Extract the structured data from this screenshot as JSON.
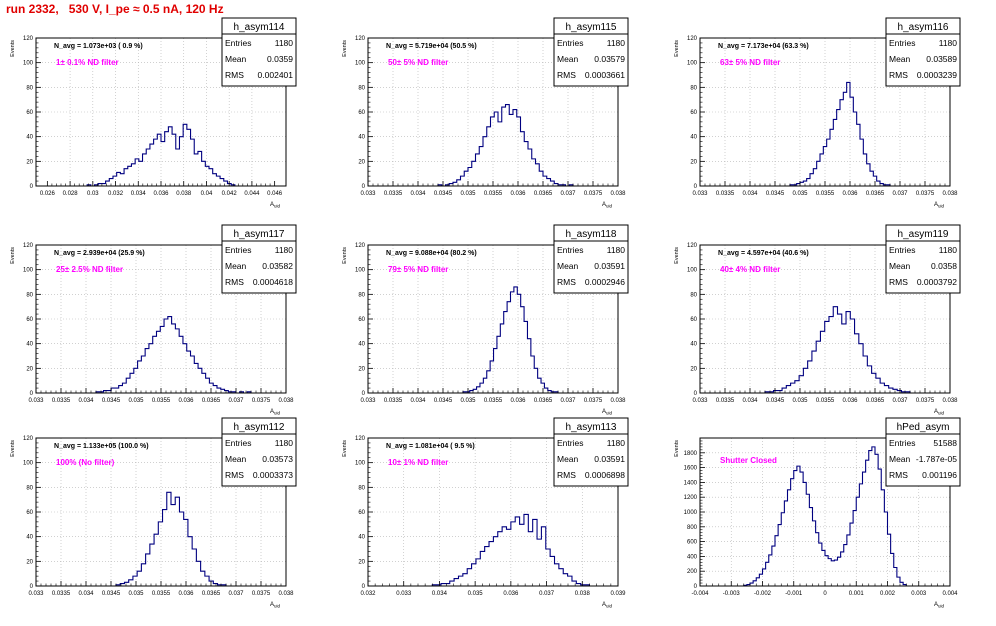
{
  "page_title": "run 2332,   530 V, I_pe ≈ 0.5 nA, 120 Hz",
  "colors": {
    "title": "#e00000",
    "histogram": "#000080",
    "annotation": "#ff00ff",
    "frame": "#000000",
    "grid": "#b4b4b4"
  },
  "chart_data": [
    {
      "type": "bar",
      "histogram_name": "h_asym114",
      "stats": {
        "entries_label": "Entries",
        "entries": "1180",
        "mean_label": "Mean",
        "mean": "0.0359",
        "rms_label": "RMS",
        "rms": "0.002401"
      },
      "n_avg_text": "N_avg = 1.073e+03 ( 0.9 %)",
      "filter_text": "1± 0.1% ND filter",
      "ylabel": "Events",
      "xlabel": "A_uid",
      "xlim": [
        0.025,
        0.047
      ],
      "ylim": [
        0,
        120
      ],
      "x_ticks": [
        "0.026",
        "0.028",
        "0.03",
        "0.032",
        "0.034",
        "0.036",
        "0.038",
        "0.04",
        "0.042",
        "0.044",
        "0.046"
      ],
      "x_tick_values": [
        0.026,
        0.028,
        0.03,
        0.032,
        0.034,
        0.036,
        0.038,
        0.04,
        0.042,
        0.044,
        0.046
      ],
      "y_ticks": [
        "0",
        "20",
        "40",
        "60",
        "80",
        "100",
        "120"
      ],
      "y_tick_values": [
        0,
        20,
        40,
        60,
        80,
        100,
        120
      ],
      "bin_edges_range": [
        0.0295,
        0.0425
      ],
      "values": [
        1,
        0,
        1,
        2,
        2,
        4,
        6,
        8,
        11,
        10,
        14,
        16,
        18,
        22,
        20,
        26,
        30,
        34,
        38,
        42,
        36,
        44,
        48,
        42,
        30,
        40,
        50,
        46,
        38,
        26,
        28,
        20,
        16,
        14,
        10,
        8,
        6,
        4,
        2,
        1
      ]
    },
    {
      "type": "bar",
      "histogram_name": "h_asym115",
      "stats": {
        "entries_label": "Entries",
        "entries": "1180",
        "mean_label": "Mean",
        "mean": "0.03579",
        "rms_label": "RMS",
        "rms": "0.0003661"
      },
      "n_avg_text": "N_avg = 5.719e+04 (50.5 %)",
      "filter_text": "50± 5% ND filter",
      "ylabel": "Events",
      "xlabel": "A_uid",
      "xlim": [
        0.033,
        0.038
      ],
      "ylim": [
        0,
        120
      ],
      "x_ticks": [
        "0.033",
        "0.0335",
        "0.034",
        "0.0345",
        "0.035",
        "0.0355",
        "0.036",
        "0.0365",
        "0.037",
        "0.0375",
        "0.038"
      ],
      "x_tick_values": [
        0.033,
        0.0335,
        0.034,
        0.0345,
        0.035,
        0.0355,
        0.036,
        0.0365,
        0.037,
        0.0375,
        0.038
      ],
      "y_ticks": [
        "0",
        "20",
        "40",
        "60",
        "80",
        "100",
        "120"
      ],
      "y_tick_values": [
        0,
        20,
        40,
        60,
        80,
        100,
        120
      ],
      "bin_edges_range": [
        0.0344,
        0.0371
      ],
      "values": [
        1,
        0,
        1,
        2,
        3,
        5,
        8,
        12,
        15,
        20,
        26,
        32,
        40,
        48,
        56,
        60,
        52,
        64,
        66,
        58,
        62,
        56,
        44,
        36,
        30,
        22,
        18,
        12,
        8,
        6,
        4,
        2,
        1,
        1,
        0,
        1
      ]
    },
    {
      "type": "bar",
      "histogram_name": "h_asym116",
      "stats": {
        "entries_label": "Entries",
        "entries": "1180",
        "mean_label": "Mean",
        "mean": "0.03589",
        "rms_label": "RMS",
        "rms": "0.0003239"
      },
      "n_avg_text": "N_avg = 7.173e+04 (63.3 %)",
      "filter_text": "63± 5% ND filter",
      "ylabel": "Events",
      "xlabel": "A_uid",
      "xlim": [
        0.033,
        0.038
      ],
      "ylim": [
        0,
        120
      ],
      "x_ticks": [
        "0.033",
        "0.0335",
        "0.034",
        "0.0345",
        "0.035",
        "0.0355",
        "0.036",
        "0.0365",
        "0.037",
        "0.0375",
        "0.038"
      ],
      "x_tick_values": [
        0.033,
        0.0335,
        0.034,
        0.0345,
        0.035,
        0.0355,
        0.036,
        0.0365,
        0.037,
        0.0375,
        0.038
      ],
      "y_ticks": [
        "0",
        "20",
        "40",
        "60",
        "80",
        "100",
        "120"
      ],
      "y_tick_values": [
        0,
        20,
        40,
        60,
        80,
        100,
        120
      ],
      "bin_edges_range": [
        0.0348,
        0.0368
      ],
      "values": [
        1,
        1,
        2,
        3,
        4,
        6,
        10,
        14,
        20,
        26,
        32,
        38,
        46,
        54,
        62,
        70,
        76,
        84,
        72,
        60,
        50,
        38,
        26,
        18,
        12,
        8,
        4,
        2,
        1,
        1
      ]
    },
    {
      "type": "bar",
      "histogram_name": "h_asym117",
      "stats": {
        "entries_label": "Entries",
        "entries": "1180",
        "mean_label": "Mean",
        "mean": "0.03582",
        "rms_label": "RMS",
        "rms": "0.0004618"
      },
      "n_avg_text": "N_avg = 2.939e+04 (25.9 %)",
      "filter_text": "25± 2.5% ND filter",
      "ylabel": "Events",
      "xlabel": "A_uid",
      "xlim": [
        0.033,
        0.038
      ],
      "ylim": [
        0,
        120
      ],
      "x_ticks": [
        "0.033",
        "0.0335",
        "0.034",
        "0.0345",
        "0.035",
        "0.0355",
        "0.036",
        "0.0365",
        "0.037",
        "0.0375",
        "0.038"
      ],
      "x_tick_values": [
        0.033,
        0.0335,
        0.034,
        0.0345,
        0.035,
        0.0355,
        0.036,
        0.0365,
        0.037,
        0.0375,
        0.038
      ],
      "y_ticks": [
        "0",
        "20",
        "40",
        "60",
        "80",
        "100",
        "120"
      ],
      "y_tick_values": [
        0,
        20,
        40,
        60,
        80,
        100,
        120
      ],
      "bin_edges_range": [
        0.0342,
        0.0373
      ],
      "values": [
        1,
        1,
        2,
        2,
        4,
        4,
        6,
        8,
        12,
        16,
        20,
        26,
        30,
        36,
        40,
        46,
        50,
        54,
        60,
        62,
        56,
        52,
        46,
        40,
        34,
        30,
        24,
        20,
        16,
        12,
        8,
        6,
        4,
        3,
        2,
        1,
        1,
        0,
        1,
        0,
        1
      ]
    },
    {
      "type": "bar",
      "histogram_name": "h_asym118",
      "stats": {
        "entries_label": "Entries",
        "entries": "1180",
        "mean_label": "Mean",
        "mean": "0.03591",
        "rms_label": "RMS",
        "rms": "0.0002946"
      },
      "n_avg_text": "N_avg = 9.088e+04 (80.2 %)",
      "filter_text": "79± 5% ND filter",
      "ylabel": "Events",
      "xlabel": "A_uid",
      "xlim": [
        0.033,
        0.038
      ],
      "ylim": [
        0,
        120
      ],
      "x_ticks": [
        "0.033",
        "0.0335",
        "0.034",
        "0.0345",
        "0.035",
        "0.0355",
        "0.036",
        "0.0365",
        "0.037",
        "0.0375",
        "0.038"
      ],
      "x_tick_values": [
        0.033,
        0.0335,
        0.034,
        0.0345,
        0.035,
        0.0355,
        0.036,
        0.0365,
        0.037,
        0.0375,
        0.038
      ],
      "y_ticks": [
        "0",
        "20",
        "40",
        "60",
        "80",
        "100",
        "120"
      ],
      "y_tick_values": [
        0,
        20,
        40,
        60,
        80,
        100,
        120
      ],
      "bin_edges_range": [
        0.0349,
        0.0368
      ],
      "values": [
        1,
        1,
        2,
        3,
        5,
        8,
        12,
        18,
        26,
        36,
        46,
        56,
        66,
        74,
        82,
        86,
        80,
        70,
        58,
        44,
        30,
        20,
        12,
        8,
        4,
        2,
        1,
        1
      ]
    },
    {
      "type": "bar",
      "histogram_name": "h_asym119",
      "stats": {
        "entries_label": "Entries",
        "entries": "1180",
        "mean_label": "Mean",
        "mean": "0.0358",
        "rms_label": "RMS",
        "rms": "0.0003792"
      },
      "n_avg_text": "N_avg = 4.597e+04 (40.6 %)",
      "filter_text": "40± 4% ND filter",
      "ylabel": "Events",
      "xlabel": "A_uid",
      "xlim": [
        0.033,
        0.038
      ],
      "ylim": [
        0,
        120
      ],
      "x_ticks": [
        "0.033",
        "0.0335",
        "0.034",
        "0.0345",
        "0.035",
        "0.0355",
        "0.036",
        "0.0365",
        "0.037",
        "0.0375",
        "0.038"
      ],
      "x_tick_values": [
        0.033,
        0.0335,
        0.034,
        0.0345,
        0.035,
        0.0355,
        0.036,
        0.0365,
        0.037,
        0.0375,
        0.038
      ],
      "y_ticks": [
        "0",
        "20",
        "40",
        "60",
        "80",
        "100",
        "120"
      ],
      "y_tick_values": [
        0,
        20,
        40,
        60,
        80,
        100,
        120
      ],
      "bin_edges_range": [
        0.0343,
        0.0372
      ],
      "values": [
        1,
        1,
        2,
        2,
        4,
        6,
        8,
        10,
        14,
        20,
        26,
        34,
        42,
        50,
        58,
        62,
        70,
        64,
        56,
        66,
        60,
        48,
        40,
        30,
        22,
        16,
        12,
        8,
        6,
        4,
        3,
        2,
        1,
        1
      ]
    },
    {
      "type": "bar",
      "histogram_name": "h_asym112",
      "stats": {
        "entries_label": "Entries",
        "entries": "1180",
        "mean_label": "Mean",
        "mean": "0.03573",
        "rms_label": "RMS",
        "rms": "0.0003373"
      },
      "n_avg_text": "N_avg = 1.133e+05 (100.0 %)",
      "filter_text": "100% (No filter)",
      "ylabel": "Events",
      "xlabel": "A_uid",
      "xlim": [
        0.033,
        0.038
      ],
      "ylim": [
        0,
        120
      ],
      "x_ticks": [
        "0.033",
        "0.0335",
        "0.034",
        "0.0345",
        "0.035",
        "0.0355",
        "0.036",
        "0.0365",
        "0.037",
        "0.0375",
        "0.038"
      ],
      "x_tick_values": [
        0.033,
        0.0335,
        0.034,
        0.0345,
        0.035,
        0.0355,
        0.036,
        0.0365,
        0.037,
        0.0375,
        0.038
      ],
      "y_ticks": [
        "0",
        "20",
        "40",
        "60",
        "80",
        "100",
        "120"
      ],
      "y_tick_values": [
        0,
        20,
        40,
        60,
        80,
        100,
        120
      ],
      "bin_edges_range": [
        0.0346,
        0.0368
      ],
      "values": [
        1,
        2,
        3,
        5,
        8,
        12,
        18,
        26,
        34,
        42,
        52,
        62,
        76,
        66,
        72,
        60,
        54,
        40,
        30,
        20,
        12,
        8,
        4,
        2,
        1,
        1
      ]
    },
    {
      "type": "bar",
      "histogram_name": "h_asym113",
      "stats": {
        "entries_label": "Entries",
        "entries": "1180",
        "mean_label": "Mean",
        "mean": "0.03591",
        "rms_label": "RMS",
        "rms": "0.0006898"
      },
      "n_avg_text": "N_avg = 1.081e+04 ( 9.5 %)",
      "filter_text": "10± 1% ND filter",
      "ylabel": "Events",
      "xlabel": "A_uid",
      "xlim": [
        0.032,
        0.039
      ],
      "ylim": [
        0,
        120
      ],
      "x_ticks": [
        "0.032",
        "0.033",
        "0.034",
        "0.035",
        "0.036",
        "0.037",
        "0.038",
        "0.039"
      ],
      "x_tick_values": [
        0.032,
        0.033,
        0.034,
        0.035,
        0.036,
        0.037,
        0.038,
        0.039
      ],
      "y_ticks": [
        "0",
        "20",
        "40",
        "60",
        "80",
        "100",
        "120"
      ],
      "y_tick_values": [
        0,
        20,
        40,
        60,
        80,
        100,
        120
      ],
      "bin_edges_range": [
        0.0338,
        0.0382
      ],
      "values": [
        1,
        1,
        2,
        2,
        4,
        6,
        8,
        10,
        14,
        18,
        22,
        28,
        32,
        36,
        40,
        44,
        48,
        46,
        52,
        56,
        50,
        58,
        44,
        54,
        38,
        48,
        30,
        24,
        18,
        14,
        10,
        8,
        4,
        2,
        1,
        1
      ]
    },
    {
      "type": "bar",
      "histogram_name": "hPed_asym",
      "stats": {
        "entries_label": "Entries",
        "entries": "51588",
        "mean_label": "Mean",
        "mean": "-1.787e-05",
        "rms_label": "RMS",
        "rms": "0.001196"
      },
      "n_avg_text": "",
      "filter_text": "Shutter Closed",
      "ylabel": "Events",
      "xlabel": "A_uid",
      "xlim": [
        -0.004,
        0.004
      ],
      "ylim": [
        0,
        2000
      ],
      "x_ticks": [
        "-0.004",
        "-0.003",
        "-0.002",
        "-0.001",
        "0",
        "0.001",
        "0.002",
        "0.003",
        "0.004"
      ],
      "x_tick_values": [
        -0.004,
        -0.003,
        -0.002,
        -0.001,
        0,
        0.001,
        0.002,
        0.003,
        0.004
      ],
      "y_ticks": [
        "0",
        "200",
        "400",
        "600",
        "800",
        "1000",
        "1200",
        "1400",
        "1600",
        "1800"
      ],
      "y_tick_values": [
        0,
        200,
        400,
        600,
        800,
        1000,
        1200,
        1400,
        1600,
        1800
      ],
      "bin_edges_range": [
        -0.0026,
        0.0026
      ],
      "values": [
        10,
        20,
        40,
        70,
        110,
        160,
        230,
        320,
        420,
        540,
        680,
        830,
        990,
        1150,
        1300,
        1450,
        1560,
        1620,
        1540,
        1400,
        1240,
        1060,
        880,
        720,
        580,
        480,
        410,
        370,
        340,
        350,
        390,
        460,
        560,
        690,
        850,
        1020,
        1200,
        1380,
        1540,
        1700,
        1830,
        1880,
        1780,
        1580,
        1300,
        1000,
        700,
        440,
        250,
        120,
        50,
        20
      ]
    }
  ]
}
